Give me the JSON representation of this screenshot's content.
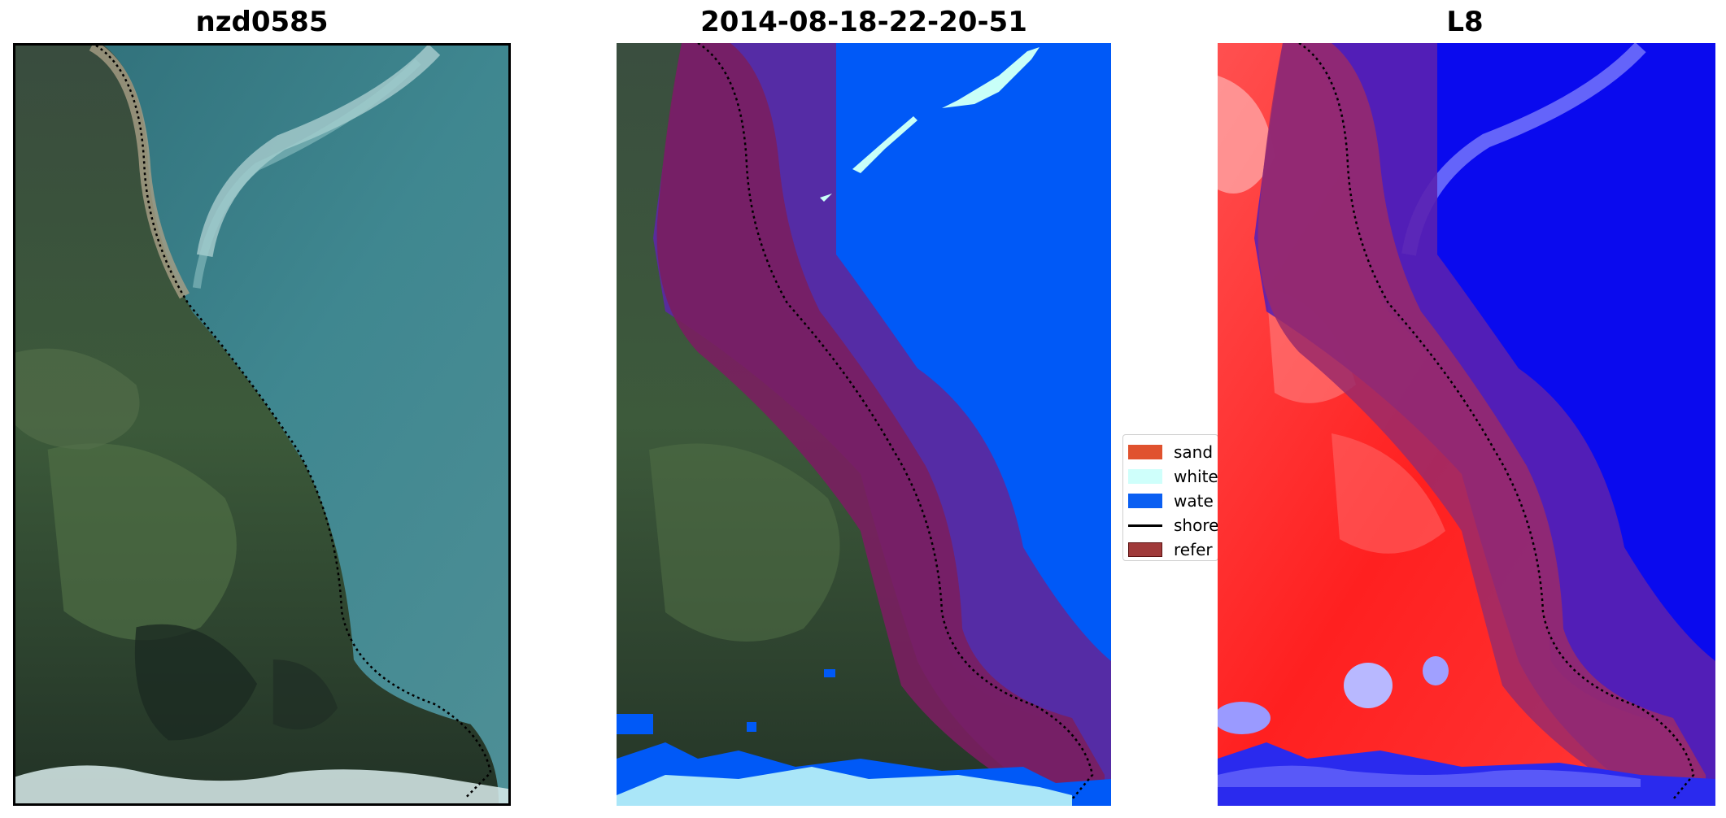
{
  "panels": [
    {
      "title": "nzd0585"
    },
    {
      "title": "2014-08-18-22-20-51"
    },
    {
      "title": "L8"
    }
  ],
  "legend": {
    "items": [
      {
        "label": "sand",
        "color": "#e0522e",
        "type": "patch"
      },
      {
        "label": "white",
        "color": "#cffffb",
        "type": "patch"
      },
      {
        "label": "wate",
        "color": "#0a5ff2",
        "type": "patch"
      },
      {
        "label": "shore",
        "color": "#000000",
        "type": "line"
      },
      {
        "label": "refer",
        "color": "#a03a3a",
        "type": "patch"
      }
    ]
  },
  "colors": {
    "water_rgb": "#3f7f86",
    "land_rgb": "#2e4a36",
    "classified_water": "#0059f7",
    "whitewater": "#c8fff8",
    "reference_buffer": "#7a1e60",
    "buffer_over_water": "#5a2aa0",
    "mndwi_land": "#ff2a2a",
    "mndwi_water": "#0a0aee"
  }
}
